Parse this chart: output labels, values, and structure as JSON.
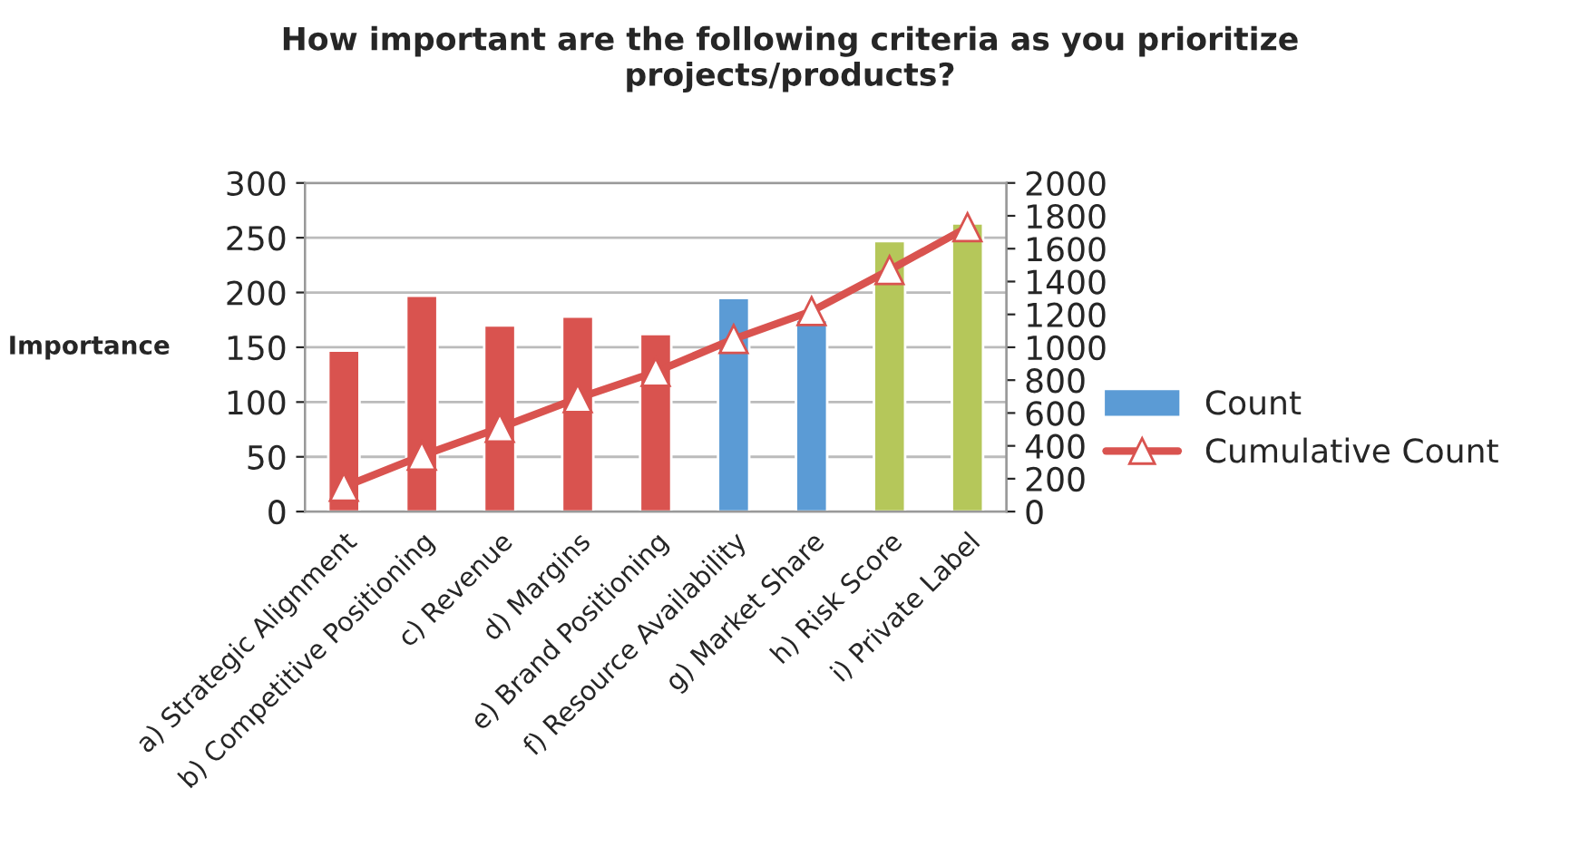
{
  "chart_data": {
    "type": "bar",
    "title": "How important are the following criteria as you prioritize\nprojects/products?",
    "ylabel": "Importance",
    "categories": [
      "a) Strategic Alignment",
      "b) Competitive Positioning",
      "c) Revenue",
      "d) Margins",
      "e) Brand Positioning",
      "f) Resource Availability",
      "g) Market Share",
      "h) Risk Score",
      "i) Private Label"
    ],
    "series": [
      {
        "name": "Count",
        "color": "#5b9bd5",
        "colors": [
          "#d9534f",
          "#d9534f",
          "#d9534f",
          "#d9534f",
          "#d9534f",
          "#5b9bd5",
          "#5b9bd5",
          "#b5c75a",
          "#b5c75a"
        ],
        "values": [
          147,
          197,
          170,
          178,
          162,
          195,
          175,
          247,
          263
        ]
      },
      {
        "name": "Cumulative Count",
        "type": "line",
        "axis": "y2",
        "color": "#d9534f",
        "marker": "triangle",
        "values": [
          150,
          340,
          510,
          690,
          850,
          1050,
          1220,
          1470,
          1730
        ]
      }
    ],
    "ylim": [
      0,
      300
    ],
    "yticks": [
      0,
      50,
      100,
      150,
      200,
      250,
      300
    ],
    "y2lim": [
      0,
      2000
    ],
    "y2ticks": [
      0,
      200,
      400,
      600,
      800,
      1000,
      1200,
      1400,
      1600,
      1800,
      2000
    ],
    "grid": "y",
    "legend": "right"
  }
}
